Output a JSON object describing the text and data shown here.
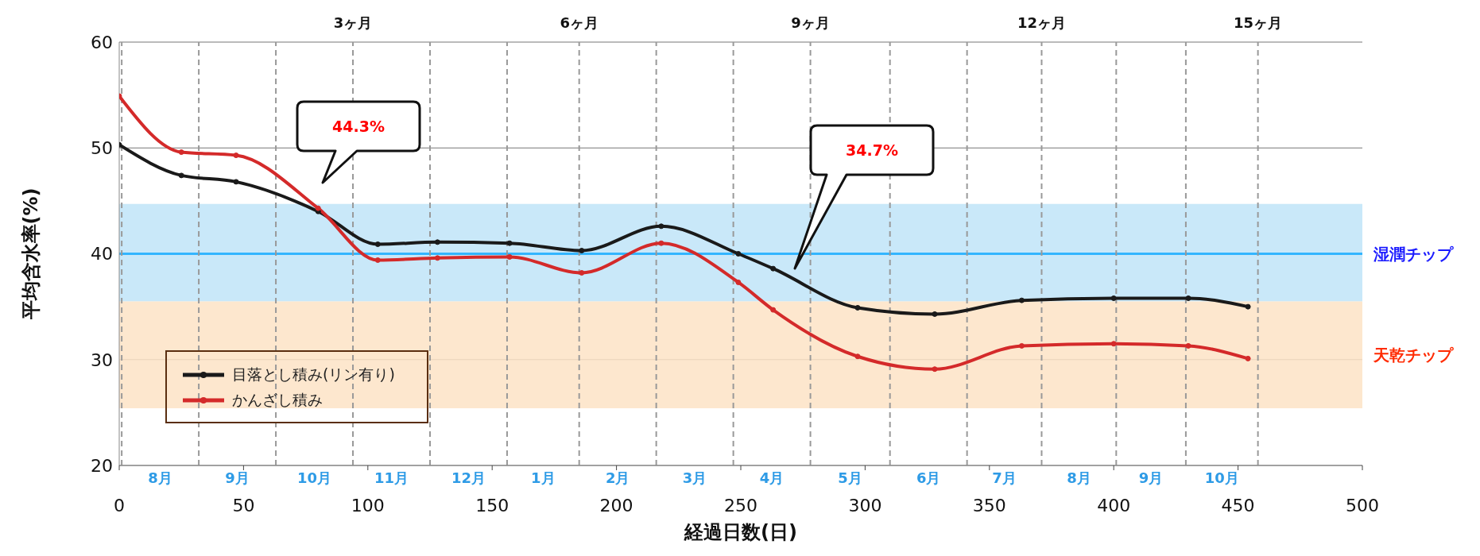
{
  "chart_data": {
    "type": "line",
    "xlabel": "経過日数(日)",
    "ylabel": "平均含水率(%)",
    "x": [
      0,
      25,
      47,
      80,
      104,
      128,
      157,
      186,
      218,
      249,
      263,
      297,
      328,
      363,
      400,
      430,
      454
    ],
    "series": [
      {
        "name": "目落とし積み(リン有り)",
        "color": "#1a1a1a",
        "values": [
          50.3,
          47.4,
          46.8,
          44.0,
          40.9,
          41.1,
          41.0,
          40.3,
          42.6,
          40.0,
          38.6,
          34.9,
          34.3,
          35.6,
          35.8,
          35.8,
          35.0
        ]
      },
      {
        "name": "かんざし積み",
        "color": "#d42a2a",
        "values": [
          54.9,
          49.6,
          49.3,
          44.3,
          39.4,
          39.6,
          39.7,
          38.2,
          41.0,
          37.3,
          34.7,
          30.3,
          29.1,
          31.3,
          31.5,
          31.3,
          30.1
        ]
      }
    ],
    "xlim": [
      0,
      500
    ],
    "xticks": [
      0,
      50,
      100,
      150,
      200,
      250,
      300,
      350,
      400,
      450,
      500
    ],
    "ylim": [
      20,
      60
    ],
    "yticks": [
      20,
      30,
      40,
      50,
      60
    ],
    "bands": [
      {
        "axis": "y",
        "from": 35.5,
        "to": 44.7,
        "label": null,
        "color": "#bfe4f8"
      },
      {
        "axis": "y",
        "from": 25.4,
        "to": 35.5,
        "label": "天乾チップ",
        "color": "#fde3c6"
      }
    ],
    "ref_lines": [
      {
        "axis": "y",
        "value": 40,
        "label": "湿潤チップ",
        "color": "#33b5ff",
        "line_style": "solid"
      },
      {
        "axis": "x",
        "value": 1,
        "label": null,
        "color": "#999999",
        "line_style": "dashed"
      },
      {
        "axis": "x",
        "value": 32,
        "label": null,
        "color": "#999999",
        "line_style": "dashed"
      },
      {
        "axis": "x",
        "value": 63,
        "label": null,
        "color": "#999999",
        "line_style": "dashed"
      },
      {
        "axis": "x",
        "value": 94,
        "label": "3ヶ月",
        "color": "#999999",
        "line_style": "dashed"
      },
      {
        "axis": "x",
        "value": 125,
        "label": null,
        "color": "#999999",
        "line_style": "dashed"
      },
      {
        "axis": "x",
        "value": 156,
        "label": null,
        "color": "#999999",
        "line_style": "dashed"
      },
      {
        "axis": "x",
        "value": 185,
        "label": "6ヶ月",
        "color": "#999999",
        "line_style": "dashed"
      },
      {
        "axis": "x",
        "value": 216,
        "label": null,
        "color": "#999999",
        "line_style": "dashed"
      },
      {
        "axis": "x",
        "value": 247,
        "label": null,
        "color": "#999999",
        "line_style": "dashed"
      },
      {
        "axis": "x",
        "value": 278,
        "label": "9ヶ月",
        "color": "#999999",
        "line_style": "dashed"
      },
      {
        "axis": "x",
        "value": 310,
        "label": null,
        "color": "#999999",
        "line_style": "dashed"
      },
      {
        "axis": "x",
        "value": 341,
        "label": null,
        "color": "#999999",
        "line_style": "dashed"
      },
      {
        "axis": "x",
        "value": 371,
        "label": "12ヶ月",
        "color": "#999999",
        "line_style": "dashed"
      },
      {
        "axis": "x",
        "value": 401,
        "label": null,
        "color": "#999999",
        "line_style": "dashed"
      },
      {
        "axis": "x",
        "value": 429,
        "label": null,
        "color": "#999999",
        "line_style": "dashed"
      },
      {
        "axis": "x",
        "value": 458,
        "label": "15ヶ月",
        "color": "#999999",
        "line_style": "dashed"
      }
    ],
    "annotations": [
      "44.3%",
      "34.7%",
      "8月",
      "9月",
      "10月",
      "11月",
      "12月",
      "1月",
      "2月",
      "3月",
      "4月",
      "5月",
      "6月",
      "7月",
      "8月",
      "9月",
      "10月"
    ],
    "grid": "y",
    "legend": "bottom left",
    "marker": "circle",
    "line_style": "solid"
  }
}
